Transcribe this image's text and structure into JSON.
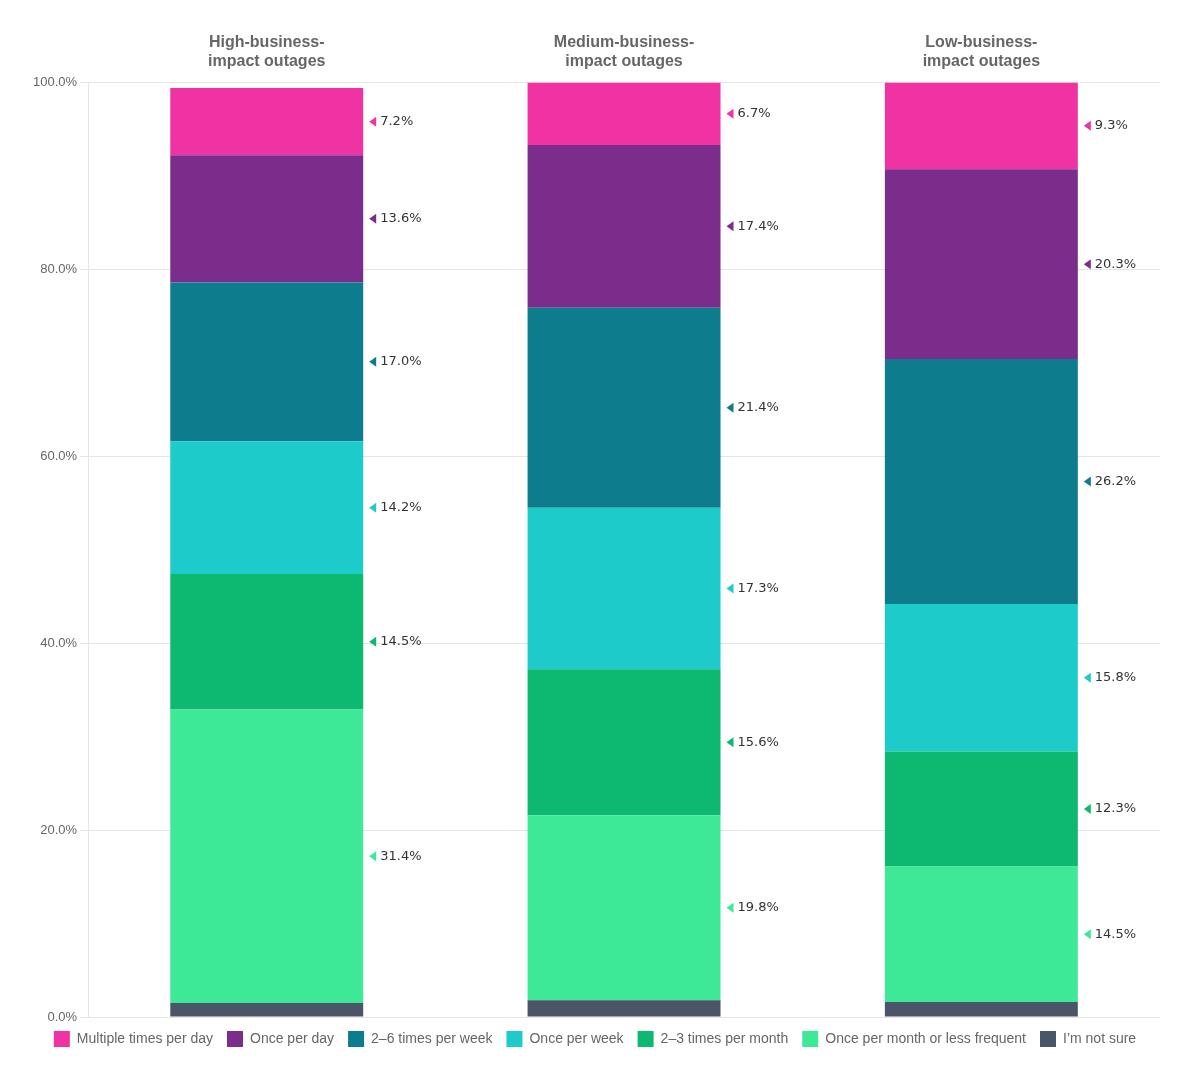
{
  "chart_data": {
    "type": "bar",
    "stacked": true,
    "categories": [
      "High-business-\nimpact outages",
      "Medium-business-\nimpact outages",
      "Low-business-\nimpact outages"
    ],
    "series": [
      {
        "name": "I’m not sure",
        "color": "#4a5568",
        "values": [
          1.5,
          1.8,
          1.6
        ]
      },
      {
        "name": "Once per month or less frequent",
        "color": "#3de897",
        "values": [
          31.4,
          19.8,
          14.5
        ],
        "value_labels": [
          "31.4%",
          "19.8%",
          "14.5%"
        ]
      },
      {
        "name": "2–3 times per month",
        "color": "#0db870",
        "values": [
          14.5,
          15.6,
          12.3
        ],
        "value_labels": [
          "14.5%",
          "15.6%",
          "12.3%"
        ]
      },
      {
        "name": "Once per week",
        "color": "#1ecbcb",
        "values": [
          14.2,
          17.3,
          15.8
        ],
        "value_labels": [
          "14.2%",
          "17.3%",
          "15.8%"
        ]
      },
      {
        "name": "2–6 times per week",
        "color": "#0d7c8c",
        "values": [
          17.0,
          21.4,
          26.2
        ],
        "value_labels": [
          "17.0%",
          "21.4%",
          "26.2%"
        ]
      },
      {
        "name": "Once per day",
        "color": "#7b2d8b",
        "values": [
          13.6,
          17.4,
          20.3
        ],
        "value_labels": [
          "13.6%",
          "17.4%",
          "20.3%"
        ]
      },
      {
        "name": "Multiple times per day",
        "color": "#f033a3",
        "values": [
          7.2,
          6.7,
          9.3
        ],
        "value_labels": [
          "7.2%",
          "6.7%",
          "9.3%"
        ]
      }
    ],
    "ylim": [
      0,
      100
    ],
    "yticks": [
      {
        "value": 0,
        "label": "0.0%"
      },
      {
        "value": 20,
        "label": "20.0%"
      },
      {
        "value": 40,
        "label": "40.0%"
      },
      {
        "value": 60,
        "label": "60.0%"
      },
      {
        "value": 80,
        "label": "80.0%"
      },
      {
        "value": 100,
        "label": "100.0%"
      }
    ],
    "grid": true,
    "legend": "bottom",
    "data_labels": true
  }
}
